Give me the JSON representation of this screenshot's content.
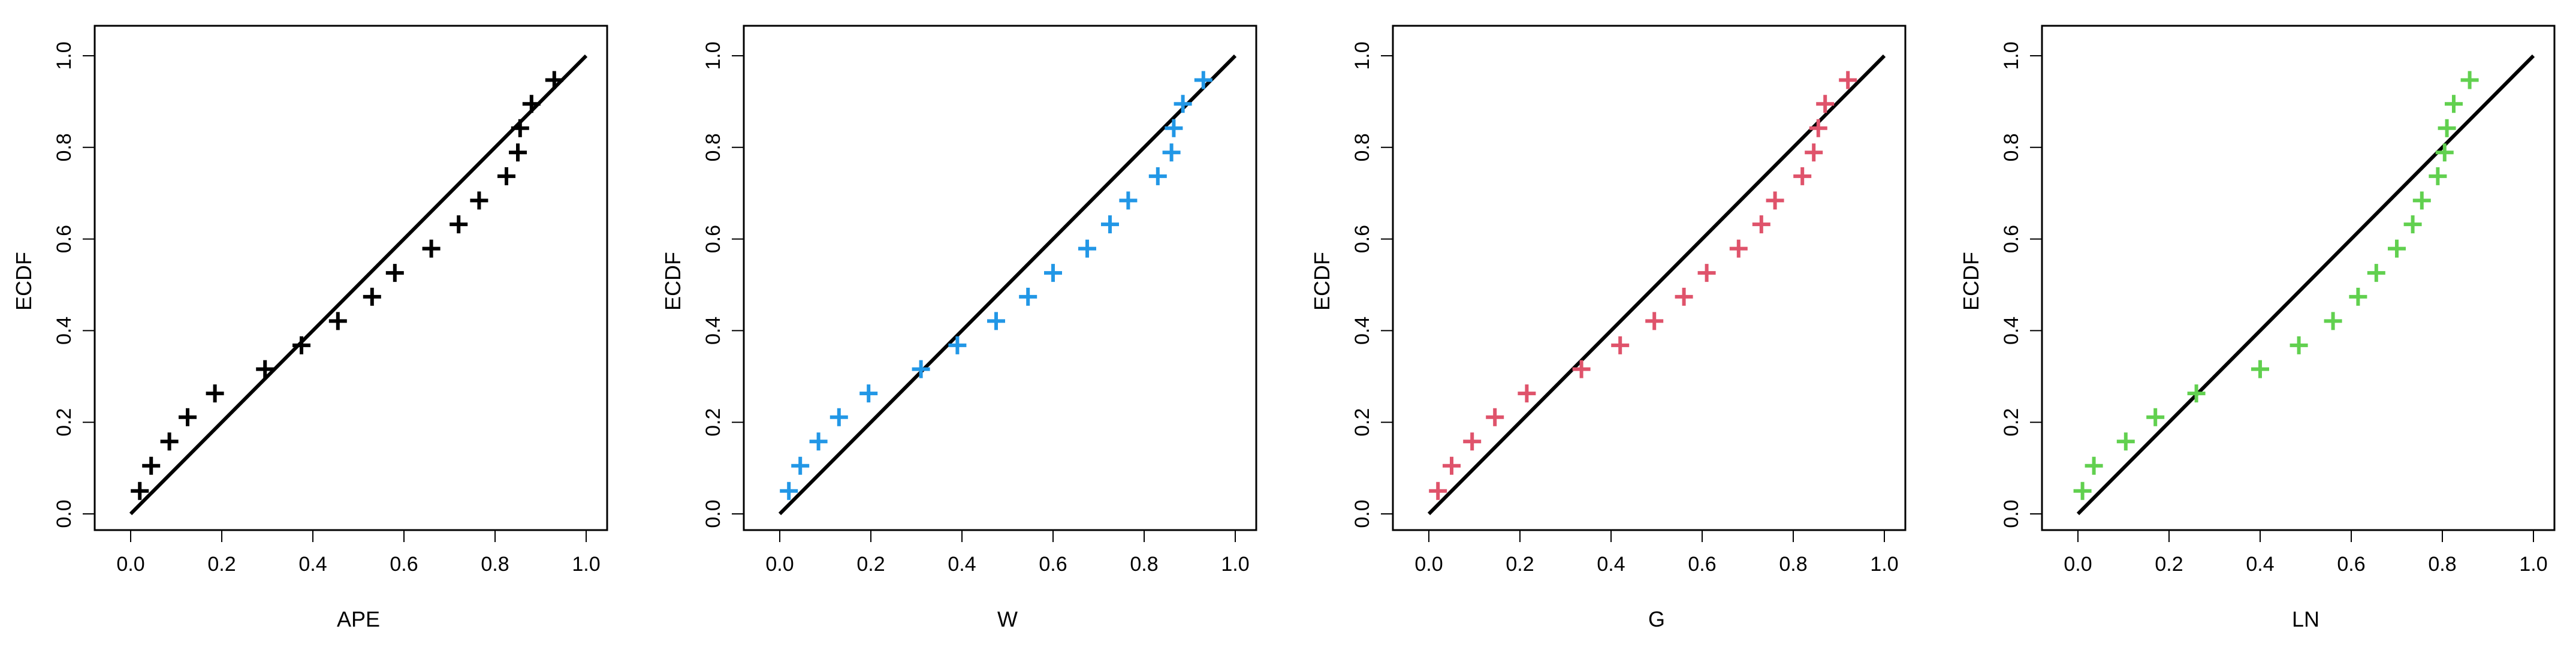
{
  "figure": {
    "background": "#ffffff"
  },
  "chart_data": [
    {
      "type": "scatter",
      "xlabel": "APE",
      "ylabel": "ECDF",
      "xlim": [
        0,
        1
      ],
      "ylim": [
        0,
        1
      ],
      "xticks": [
        "0.0",
        "0.2",
        "0.4",
        "0.6",
        "0.8",
        "1.0"
      ],
      "yticks": [
        "0.0",
        "0.2",
        "0.4",
        "0.6",
        "0.8",
        "1.0"
      ],
      "grid": false,
      "legend": "none",
      "reference_line": {
        "from": [
          0,
          0
        ],
        "to": [
          1,
          1
        ],
        "color": "#000000"
      },
      "series": [
        {
          "marker": "plus",
          "color": "#000000",
          "x": [
            0.02,
            0.045,
            0.085,
            0.125,
            0.185,
            0.295,
            0.375,
            0.455,
            0.53,
            0.58,
            0.66,
            0.72,
            0.765,
            0.825,
            0.85,
            0.855,
            0.88,
            0.93
          ],
          "y": [
            0.05,
            0.105,
            0.158,
            0.211,
            0.263,
            0.316,
            0.368,
            0.421,
            0.474,
            0.526,
            0.579,
            0.632,
            0.684,
            0.737,
            0.789,
            0.842,
            0.895,
            0.947
          ]
        }
      ]
    },
    {
      "type": "scatter",
      "xlabel": "W",
      "ylabel": "ECDF",
      "xlim": [
        0,
        1
      ],
      "ylim": [
        0,
        1
      ],
      "xticks": [
        "0.0",
        "0.2",
        "0.4",
        "0.6",
        "0.8",
        "1.0"
      ],
      "yticks": [
        "0.0",
        "0.2",
        "0.4",
        "0.6",
        "0.8",
        "1.0"
      ],
      "grid": false,
      "legend": "none",
      "reference_line": {
        "from": [
          0,
          0
        ],
        "to": [
          1,
          1
        ],
        "color": "#000000"
      },
      "series": [
        {
          "marker": "plus",
          "color": "#2297e6",
          "x": [
            0.02,
            0.045,
            0.085,
            0.13,
            0.195,
            0.31,
            0.39,
            0.475,
            0.545,
            0.6,
            0.675,
            0.725,
            0.765,
            0.83,
            0.86,
            0.865,
            0.885,
            0.93
          ],
          "y": [
            0.05,
            0.105,
            0.158,
            0.211,
            0.263,
            0.316,
            0.368,
            0.421,
            0.474,
            0.526,
            0.579,
            0.632,
            0.684,
            0.737,
            0.789,
            0.842,
            0.895,
            0.947
          ]
        }
      ]
    },
    {
      "type": "scatter",
      "xlabel": "G",
      "ylabel": "ECDF",
      "xlim": [
        0,
        1
      ],
      "ylim": [
        0,
        1
      ],
      "xticks": [
        "0.0",
        "0.2",
        "0.4",
        "0.6",
        "0.8",
        "1.0"
      ],
      "yticks": [
        "0.0",
        "0.2",
        "0.4",
        "0.6",
        "0.8",
        "1.0"
      ],
      "grid": false,
      "legend": "none",
      "reference_line": {
        "from": [
          0,
          0
        ],
        "to": [
          1,
          1
        ],
        "color": "#000000"
      },
      "series": [
        {
          "marker": "plus",
          "color": "#df536b",
          "x": [
            0.02,
            0.05,
            0.095,
            0.145,
            0.215,
            0.335,
            0.42,
            0.495,
            0.56,
            0.61,
            0.68,
            0.73,
            0.76,
            0.82,
            0.845,
            0.855,
            0.87,
            0.92
          ],
          "y": [
            0.05,
            0.105,
            0.158,
            0.211,
            0.263,
            0.316,
            0.368,
            0.421,
            0.474,
            0.526,
            0.579,
            0.632,
            0.684,
            0.737,
            0.789,
            0.842,
            0.895,
            0.947
          ]
        }
      ]
    },
    {
      "type": "scatter",
      "xlabel": "LN",
      "ylabel": "ECDF",
      "xlim": [
        0,
        1
      ],
      "ylim": [
        0,
        1
      ],
      "xticks": [
        "0.0",
        "0.2",
        "0.4",
        "0.6",
        "0.8",
        "1.0"
      ],
      "yticks": [
        "0.0",
        "0.2",
        "0.4",
        "0.6",
        "0.8",
        "1.0"
      ],
      "grid": false,
      "legend": "none",
      "reference_line": {
        "from": [
          0,
          0
        ],
        "to": [
          1,
          1
        ],
        "color": "#000000"
      },
      "series": [
        {
          "marker": "plus",
          "color": "#61d04f",
          "x": [
            0.01,
            0.035,
            0.105,
            0.17,
            0.26,
            0.4,
            0.485,
            0.56,
            0.615,
            0.655,
            0.7,
            0.735,
            0.755,
            0.79,
            0.805,
            0.81,
            0.825,
            0.86
          ],
          "y": [
            0.05,
            0.105,
            0.158,
            0.211,
            0.263,
            0.316,
            0.368,
            0.421,
            0.474,
            0.526,
            0.579,
            0.632,
            0.684,
            0.737,
            0.789,
            0.842,
            0.895,
            0.947
          ]
        }
      ]
    }
  ]
}
